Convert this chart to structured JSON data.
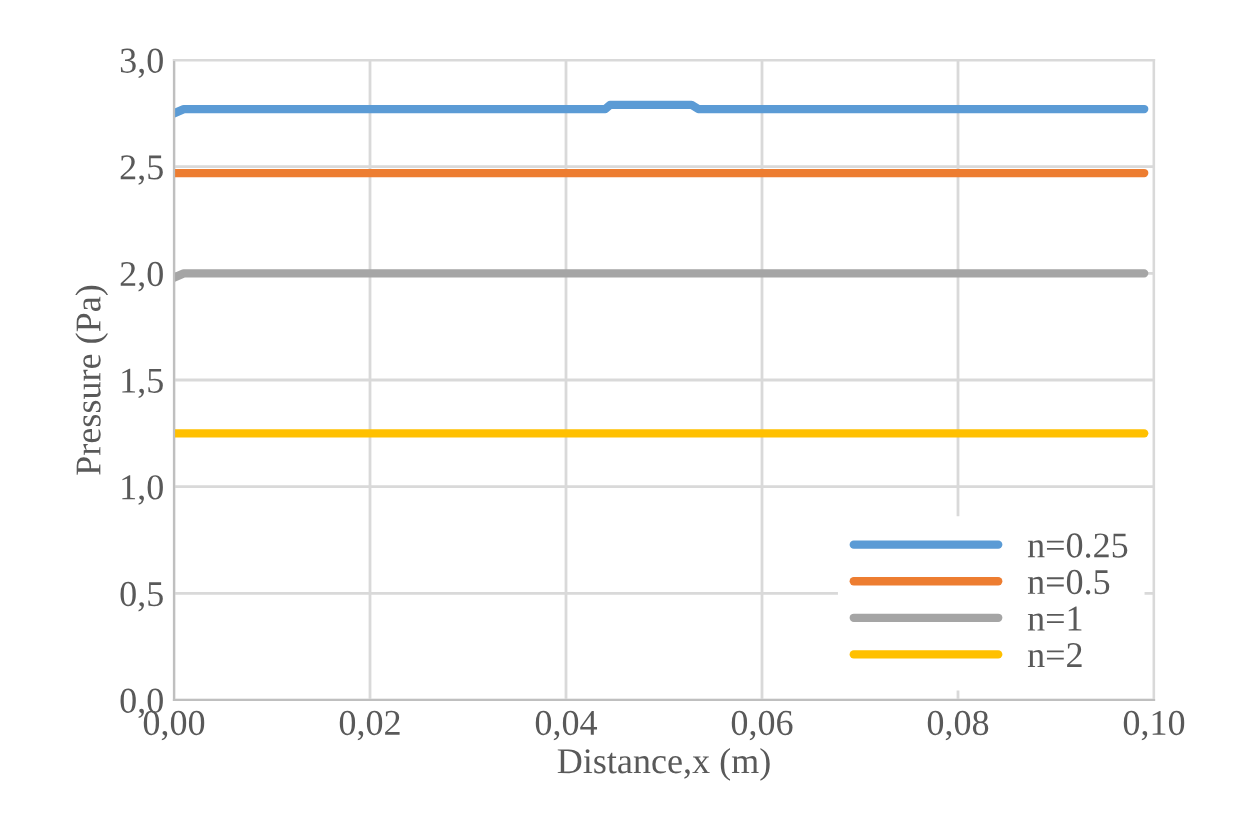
{
  "chart_data": {
    "type": "line",
    "xlabel": "Distance,x (m)",
    "ylabel": "Pressure (Pa)",
    "series": [
      {
        "name": "n=0.25",
        "color": "#5b9bd5",
        "x": [
          0,
          0.001,
          0.044,
          0.0445,
          0.0528,
          0.0535,
          0.099
        ],
        "values": [
          2.75,
          2.77,
          2.77,
          2.79,
          2.79,
          2.77,
          2.77
        ]
      },
      {
        "name": "n=0.5",
        "color": "#ed7d31",
        "x": [
          0,
          0.099
        ],
        "values": [
          2.47,
          2.47
        ]
      },
      {
        "name": "n=1",
        "color": "#a5a5a5",
        "x": [
          0,
          0.001,
          0.099
        ],
        "values": [
          1.98,
          2.0,
          2.0
        ]
      },
      {
        "name": "n=2",
        "color": "#ffc000",
        "x": [
          0,
          0.099
        ],
        "values": [
          1.25,
          1.25
        ]
      }
    ],
    "xlim": [
      0,
      0.1
    ],
    "ylim": [
      0,
      3
    ],
    "xticks": [
      {
        "value": 0,
        "label": "0,00"
      },
      {
        "value": 0.02,
        "label": "0,02"
      },
      {
        "value": 0.04,
        "label": "0,04"
      },
      {
        "value": 0.06,
        "label": "0,06"
      },
      {
        "value": 0.08,
        "label": "0,08"
      },
      {
        "value": 0.1,
        "label": "0,10"
      }
    ],
    "yticks": [
      {
        "value": 0,
        "label": "0,0"
      },
      {
        "value": 0.5,
        "label": "0,5"
      },
      {
        "value": 1,
        "label": "1,0"
      },
      {
        "value": 1.5,
        "label": "1,5"
      },
      {
        "value": 2,
        "label": "2,0"
      },
      {
        "value": 2.5,
        "label": "2,5"
      },
      {
        "value": 3,
        "label": "3,0"
      }
    ],
    "grid": true,
    "legend": "bottom right",
    "marker": "none",
    "line_style": "solid"
  }
}
